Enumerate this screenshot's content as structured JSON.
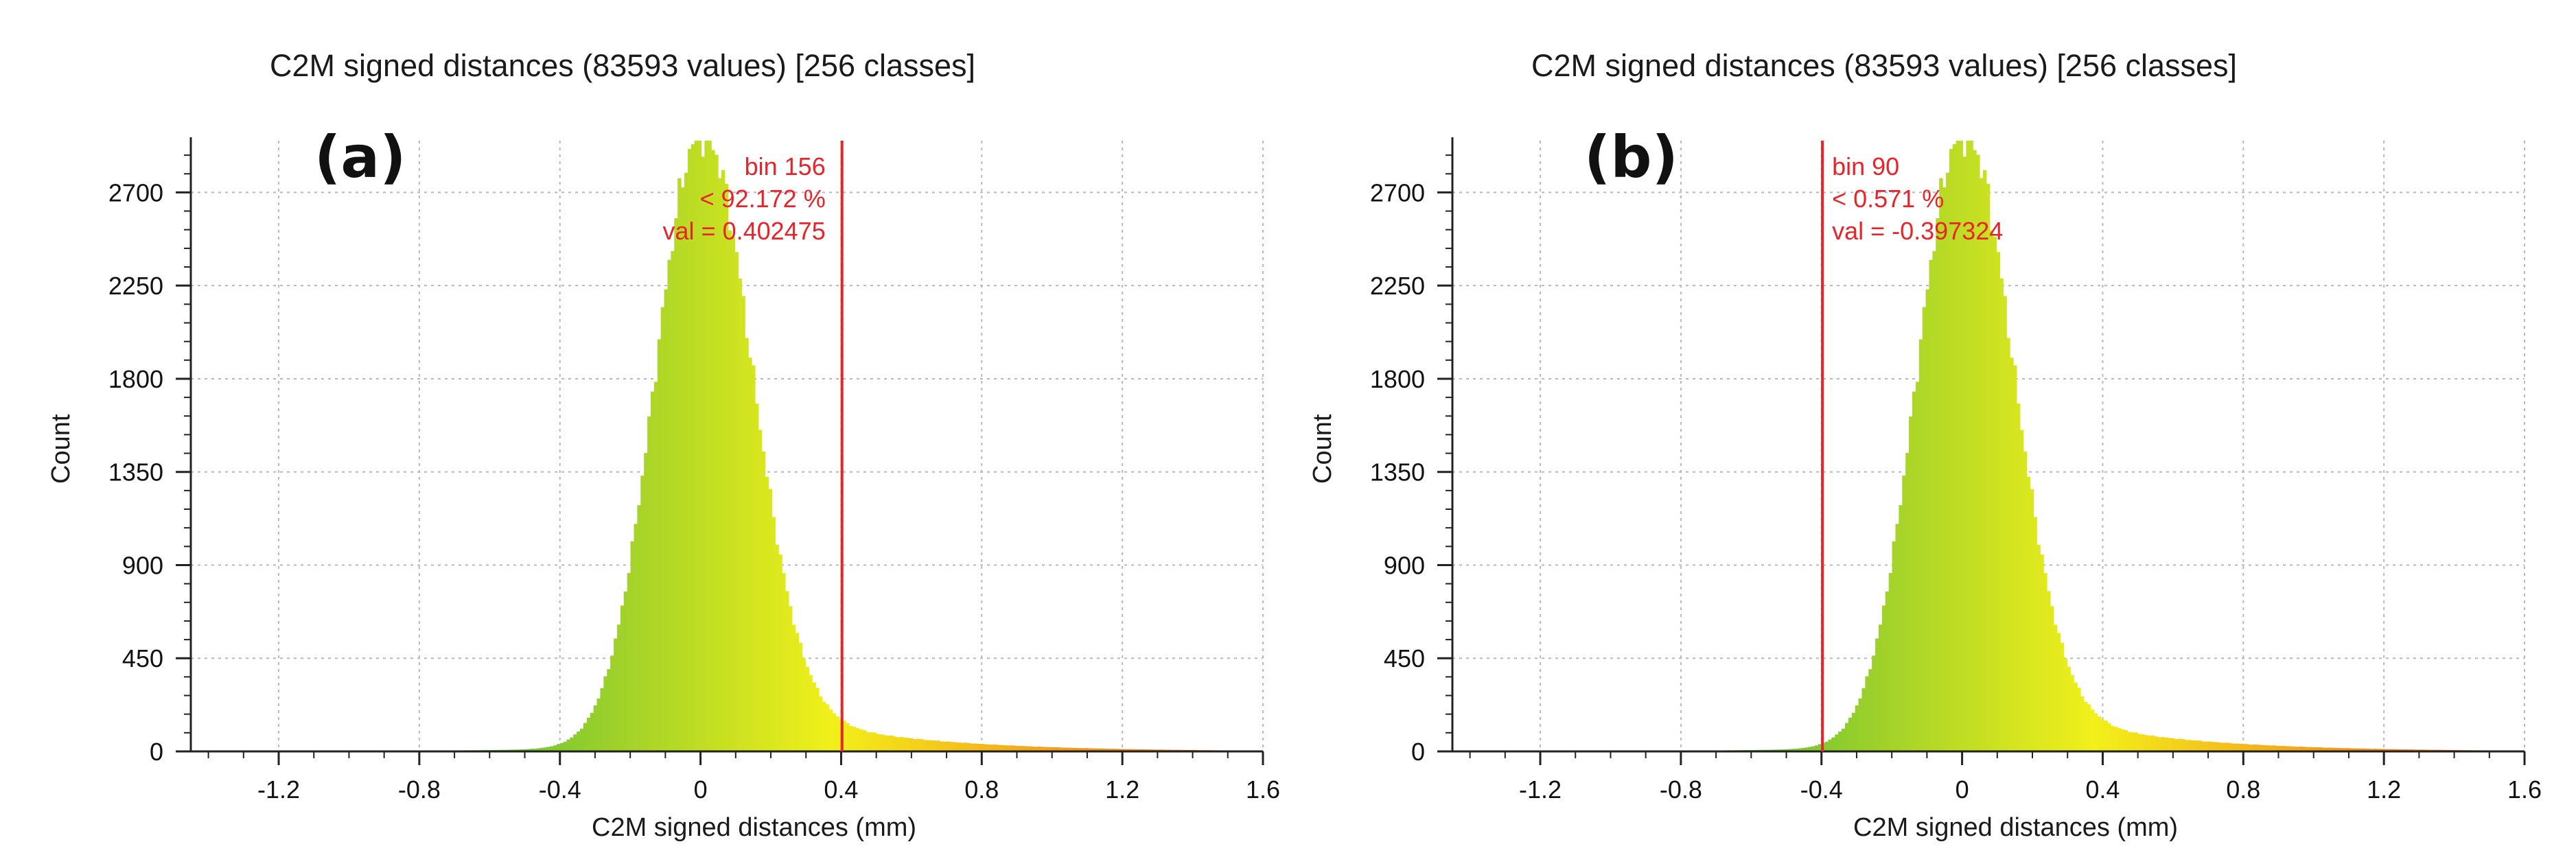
{
  "chart_data": [
    {
      "type": "bar",
      "panel_label": "(a)",
      "title": "C2M signed distances (83593 values)  [256 classes]",
      "xlabel": "C2M signed distances (mm)",
      "ylabel": "Count",
      "total_values": 83593,
      "classes": 256,
      "xlim": [
        -1.45,
        1.6
      ],
      "ylim": [
        0,
        2950
      ],
      "xticks": [
        "-1.2",
        "-0.8",
        "-0.4",
        "0",
        "0.4",
        "0.8",
        "1.2",
        "1.6"
      ],
      "yticks": [
        "0",
        "450",
        "900",
        "1350",
        "1800",
        "2250",
        "2700"
      ],
      "grid": true,
      "marker": {
        "x": 0.402475,
        "lines": [
          "bin 156",
          "< 92.172 %",
          "val = 0.402475"
        ]
      },
      "colormap": [
        "#3fb93a",
        "#9fd12a",
        "#f2f01a",
        "#f6a21a",
        "#f2601a"
      ],
      "distribution": {
        "peak_x": 0.0,
        "peak_count": 2950,
        "left_width": 0.13,
        "right_width": 0.14,
        "tail_decay": 0.35,
        "tail_amplitude": 0.12
      }
    },
    {
      "type": "bar",
      "panel_label": "(b)",
      "title": "C2M signed distances (83593 values)  [256 classes]",
      "xlabel": "C2M signed distances (mm)",
      "ylabel": "Count",
      "total_values": 83593,
      "classes": 256,
      "xlim": [
        -1.45,
        1.6
      ],
      "ylim": [
        0,
        2950
      ],
      "xticks": [
        "-1.2",
        "-0.8",
        "-0.4",
        "0",
        "0.4",
        "0.8",
        "1.2",
        "1.6"
      ],
      "yticks": [
        "0",
        "450",
        "900",
        "1350",
        "1800",
        "2250",
        "2700"
      ],
      "grid": true,
      "marker": {
        "x": -0.397324,
        "lines": [
          "bin 90",
          "< 0.571 %",
          "val = -0.397324"
        ]
      },
      "colormap": [
        "#3fb93a",
        "#9fd12a",
        "#f2f01a",
        "#f6a21a",
        "#f2601a"
      ],
      "distribution": {
        "peak_x": 0.0,
        "peak_count": 2950,
        "left_width": 0.13,
        "right_width": 0.14,
        "tail_decay": 0.35,
        "tail_amplitude": 0.12
      }
    }
  ]
}
